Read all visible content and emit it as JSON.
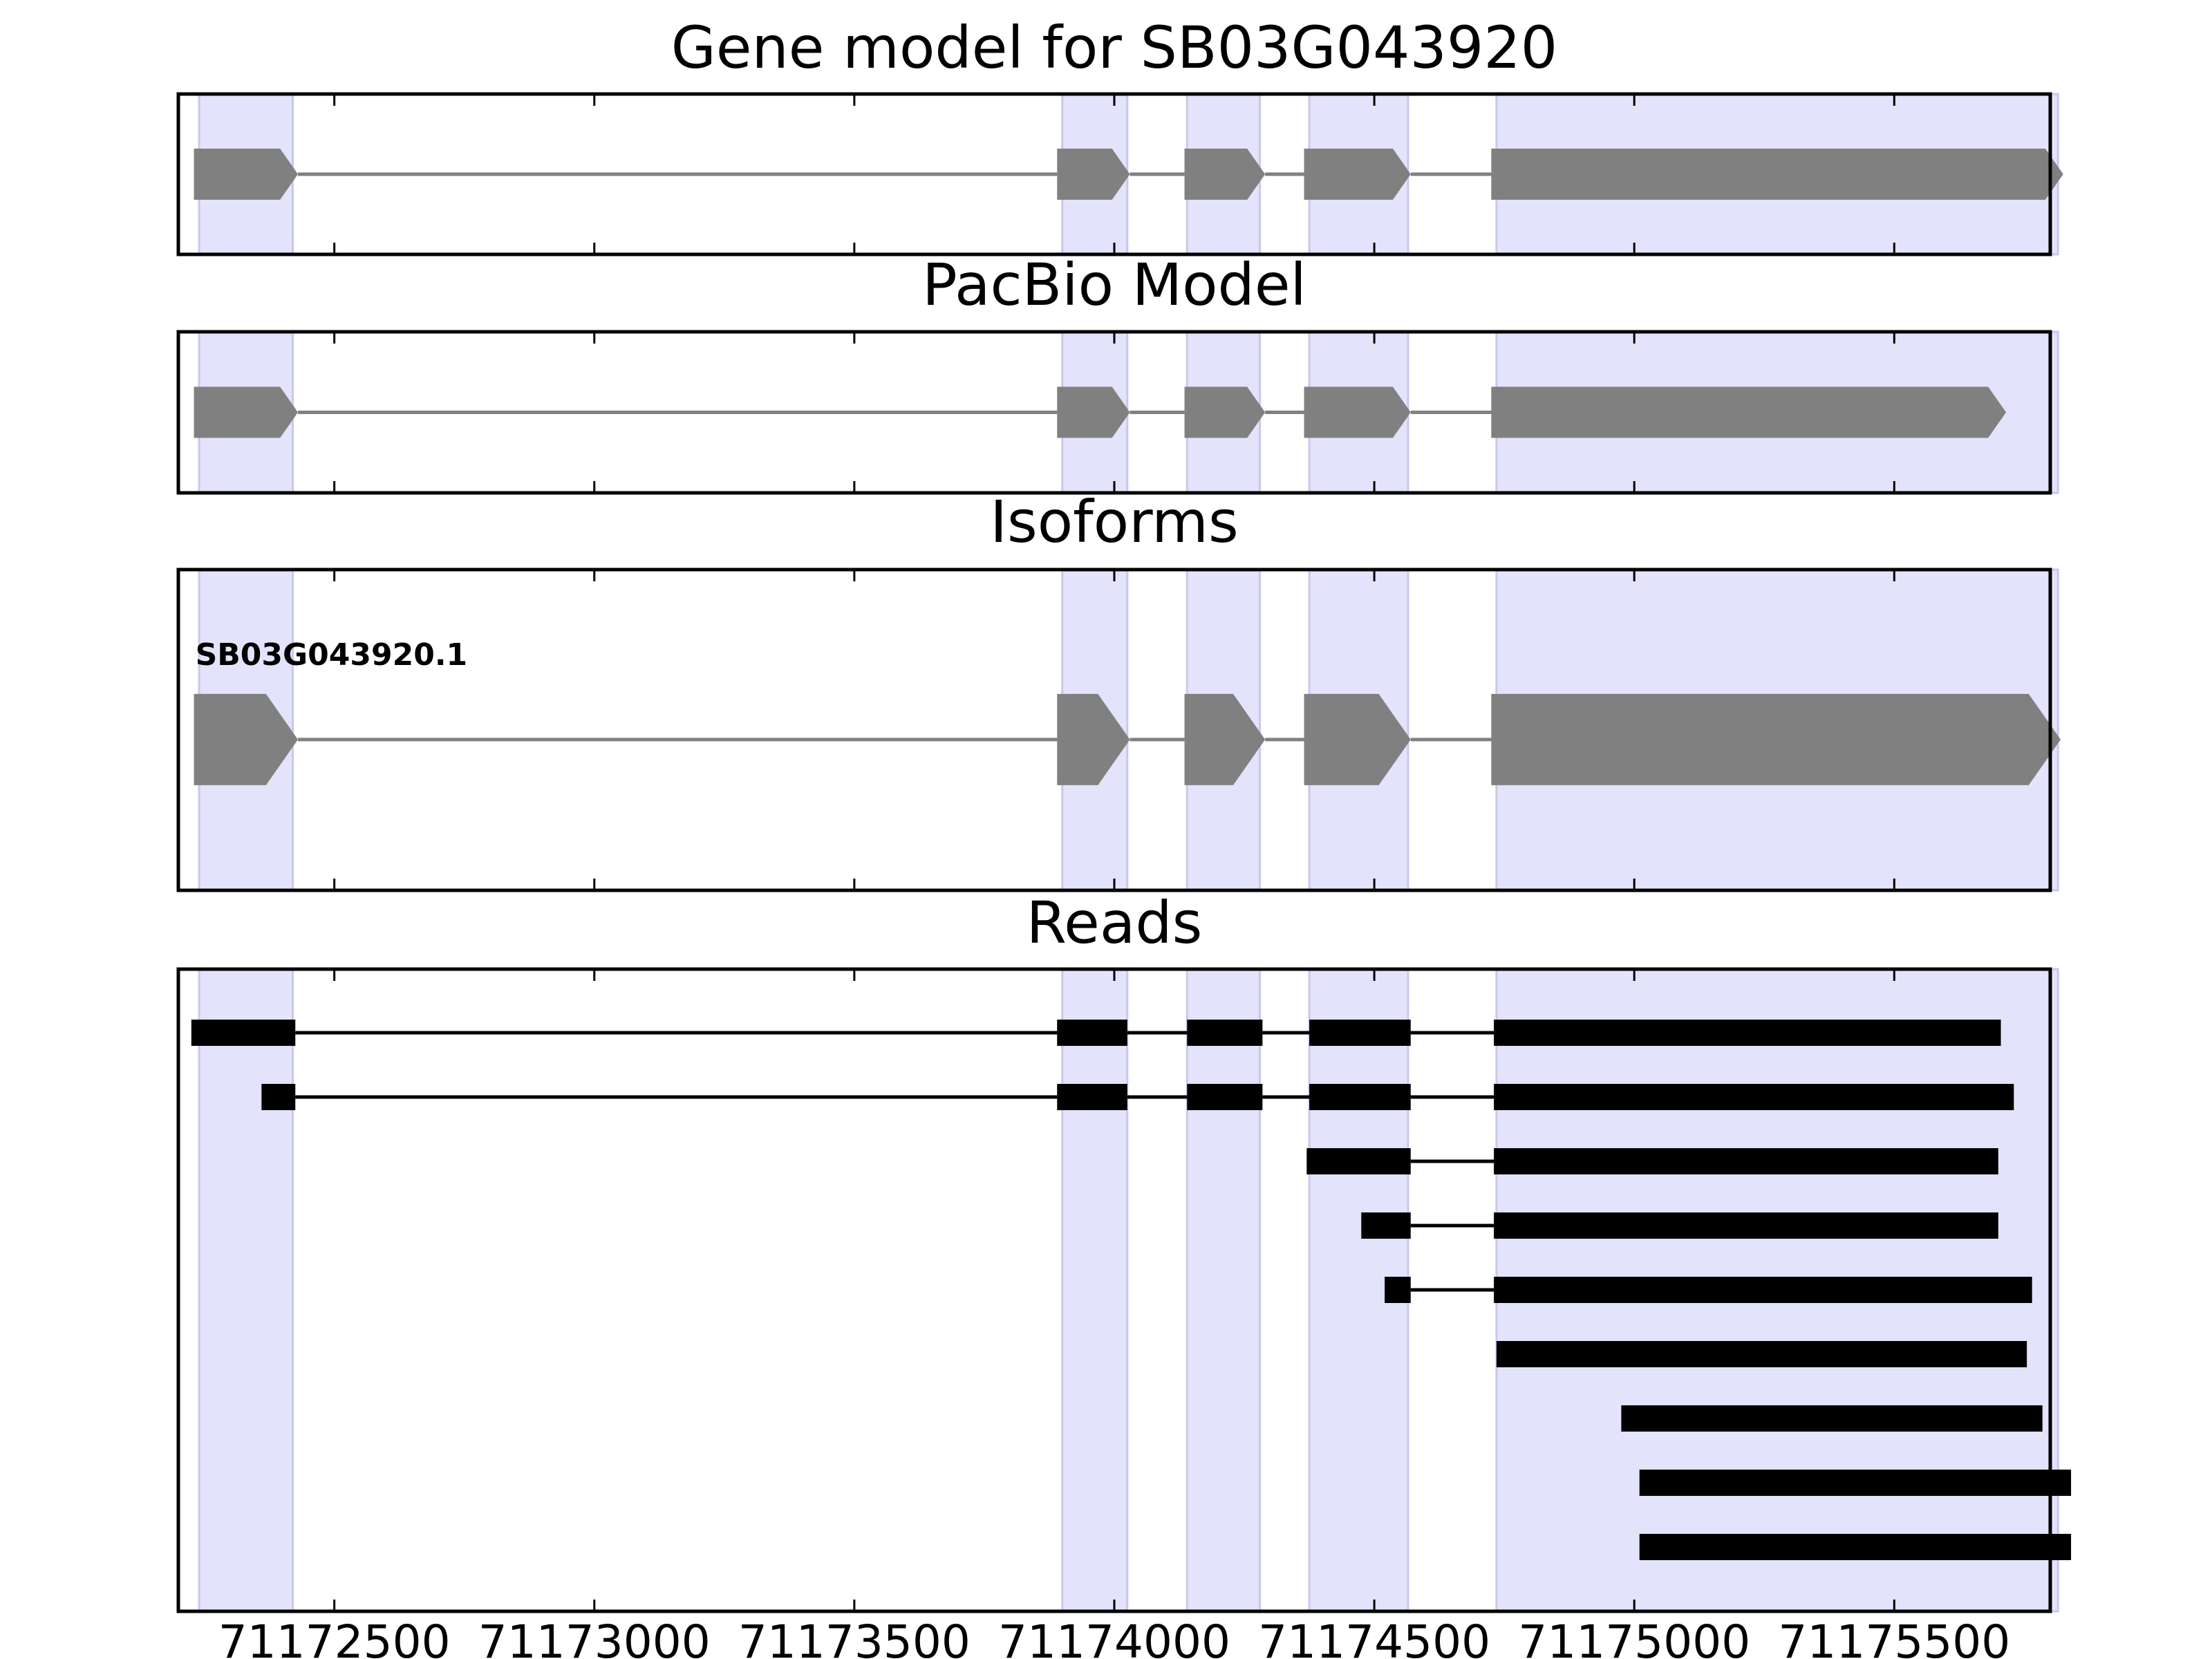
{
  "chart_data": {
    "type": "gene-model-tracks",
    "xlim": [
      71172200,
      71175800
    ],
    "x_ticks": [
      71172500,
      71173000,
      71173500,
      71174000,
      71174500,
      71175000,
      71175500
    ],
    "x_tick_labels": [
      "71172500",
      "71173000",
      "71173500",
      "71174000",
      "71174500",
      "71175000",
      "71175500"
    ],
    "shaded_exon_regions": [
      [
        71172240,
        71172420
      ],
      [
        71173900,
        71174025
      ],
      [
        71174140,
        71174280
      ],
      [
        71174375,
        71174565
      ],
      [
        71174735,
        71175815
      ]
    ],
    "colors": {
      "exon_shade": "#e3e3fb",
      "exon_shade_edge": "#c8c8ee",
      "model_feature": "#808080",
      "read_feature": "#000000",
      "axis": "#000000"
    },
    "panels": [
      {
        "title": "Gene model for SB03G043920",
        "style": "arrow",
        "features": [
          {
            "strand": "+",
            "exons": [
              [
                71172230,
                71172430
              ],
              [
                71173890,
                71174030
              ],
              [
                71174135,
                71174290
              ],
              [
                71174365,
                71174570
              ],
              [
                71174725,
                71175825
              ]
            ]
          }
        ]
      },
      {
        "title": "PacBio Model",
        "style": "arrow",
        "features": [
          {
            "strand": "+",
            "exons": [
              [
                71172230,
                71172430
              ],
              [
                71173890,
                71174030
              ],
              [
                71174135,
                71174290
              ],
              [
                71174365,
                71174570
              ],
              [
                71174725,
                71175715
              ]
            ]
          }
        ]
      },
      {
        "title": "Isoforms",
        "style": "arrow",
        "features": [
          {
            "label": "SB03G043920.1",
            "strand": "+",
            "exons": [
              [
                71172230,
                71172430
              ],
              [
                71173890,
                71174030
              ],
              [
                71174135,
                71174290
              ],
              [
                71174365,
                71174570
              ],
              [
                71174725,
                71175820
              ]
            ]
          }
        ]
      },
      {
        "title": "Reads",
        "style": "bar",
        "features": [
          {
            "exons": [
              [
                71172225,
                71172425
              ],
              [
                71173890,
                71174025
              ],
              [
                71174140,
                71174285
              ],
              [
                71174375,
                71174570
              ],
              [
                71174730,
                71175705
              ]
            ]
          },
          {
            "exons": [
              [
                71172360,
                71172425
              ],
              [
                71173890,
                71174025
              ],
              [
                71174140,
                71174285
              ],
              [
                71174375,
                71174570
              ],
              [
                71174730,
                71175730
              ]
            ]
          },
          {
            "exons": [
              [
                71174370,
                71174570
              ],
              [
                71174730,
                71175700
              ]
            ]
          },
          {
            "exons": [
              [
                71174475,
                71174570
              ],
              [
                71174730,
                71175700
              ]
            ]
          },
          {
            "exons": [
              [
                71174520,
                71174570
              ],
              [
                71174730,
                71175765
              ]
            ]
          },
          {
            "exons": [
              [
                71174735,
                71175755
              ]
            ]
          },
          {
            "exons": [
              [
                71174975,
                71175785
              ]
            ]
          },
          {
            "exons": [
              [
                71175010,
                71175840
              ]
            ]
          },
          {
            "exons": [
              [
                71175010,
                71175840
              ]
            ]
          }
        ]
      }
    ]
  }
}
